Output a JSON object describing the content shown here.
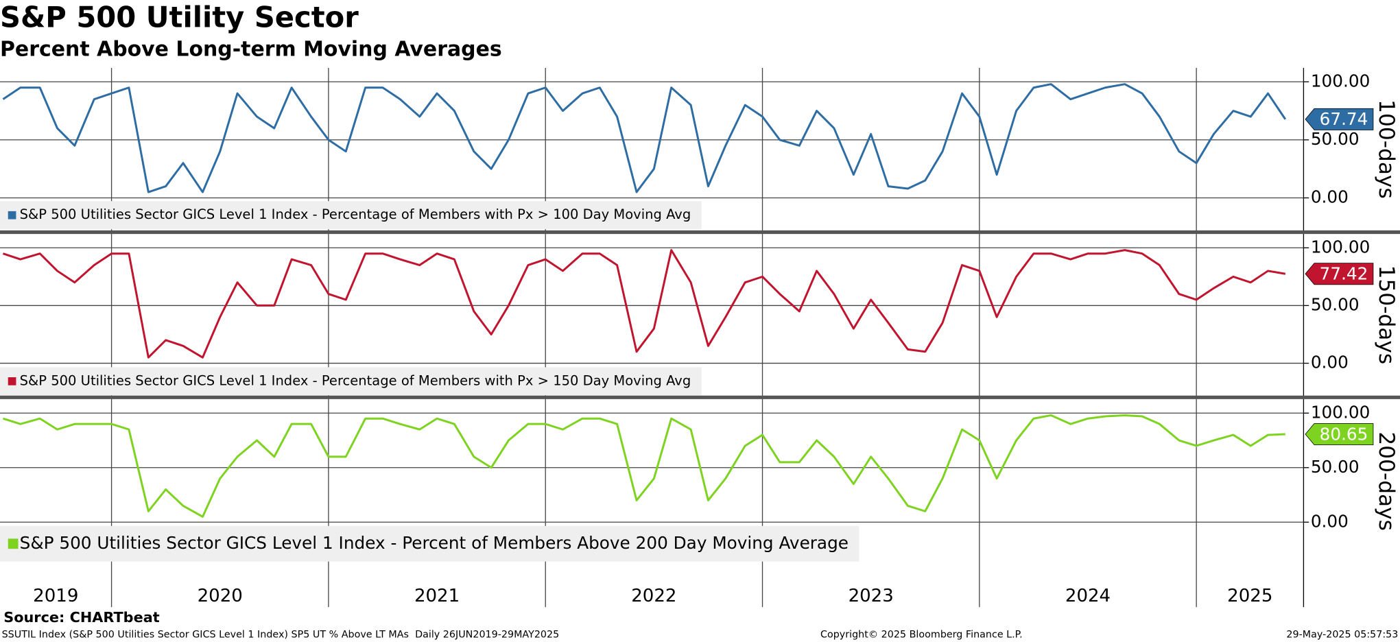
{
  "title": "S&P 500 Utility Sector",
  "subtitle": "Percent Above Long-term Moving Averages",
  "x_axis": {
    "xlim": [
      2019.486,
      2025.494
    ],
    "xticks": [
      2020,
      2021,
      2022,
      2023,
      2024,
      2025
    ],
    "year_labels": [
      2019,
      2020,
      2021,
      2022,
      2023,
      2024,
      2025
    ]
  },
  "source": "Source: CHARTbeat",
  "footer_left": "SSUTIL Index (S&P 500 Utilities Sector GICS Level 1 Index) SP5 UT % Above LT MAs  Daily 26JUN2019-29MAY2025",
  "footer_center": "Copyright© 2025 Bloomberg Finance L.P.",
  "footer_right": "29-May-2025 05:57:53",
  "chart_data": [
    {
      "type": "line",
      "axis_label": "100-days",
      "ylim": [
        -28,
        112
      ],
      "yticks": [
        {
          "value": 0,
          "label": "0.00"
        },
        {
          "value": 50,
          "label": "50.00"
        },
        {
          "value": 100,
          "label": "100.00"
        }
      ],
      "grid": true,
      "x": [
        2019.5,
        2019.58,
        2019.67,
        2019.75,
        2019.83,
        2019.92,
        2020.0,
        2020.08,
        2020.17,
        2020.25,
        2020.33,
        2020.42,
        2020.5,
        2020.58,
        2020.67,
        2020.75,
        2020.83,
        2020.92,
        2021.0,
        2021.08,
        2021.17,
        2021.25,
        2021.33,
        2021.42,
        2021.5,
        2021.58,
        2021.67,
        2021.75,
        2021.83,
        2021.92,
        2022.0,
        2022.08,
        2022.17,
        2022.25,
        2022.33,
        2022.42,
        2022.5,
        2022.58,
        2022.67,
        2022.75,
        2022.83,
        2022.92,
        2023.0,
        2023.08,
        2023.17,
        2023.25,
        2023.33,
        2023.42,
        2023.5,
        2023.58,
        2023.67,
        2023.75,
        2023.83,
        2023.92,
        2024.0,
        2024.08,
        2024.17,
        2024.25,
        2024.33,
        2024.42,
        2024.5,
        2024.58,
        2024.67,
        2024.75,
        2024.83,
        2024.92,
        2025.0,
        2025.08,
        2025.17,
        2025.25,
        2025.33,
        2025.41
      ],
      "series": [
        {
          "name": "S&P 500 Utilities Sector GICS Level 1 Index - Percentage of Members with Px > 100 Day Moving Avg",
          "color": "#2e6da4",
          "values": [
            85,
            95,
            95,
            60,
            45,
            85,
            90,
            95,
            5,
            10,
            30,
            5,
            40,
            90,
            70,
            60,
            95,
            70,
            50,
            40,
            95,
            95,
            85,
            70,
            90,
            75,
            40,
            25,
            50,
            90,
            95,
            75,
            90,
            95,
            70,
            5,
            25,
            95,
            80,
            10,
            45,
            80,
            70,
            50,
            45,
            75,
            60,
            20,
            55,
            10,
            8,
            15,
            40,
            90,
            70,
            20,
            75,
            95,
            98,
            85,
            90,
            95,
            98,
            90,
            70,
            40,
            30,
            55,
            75,
            70,
            90,
            67.74
          ]
        }
      ]
    },
    {
      "type": "line",
      "axis_label": "150-days",
      "ylim": [
        -28,
        112
      ],
      "yticks": [
        {
          "value": 0,
          "label": "0.00"
        },
        {
          "value": 50,
          "label": "50.00"
        },
        {
          "value": 100,
          "label": "100.00"
        }
      ],
      "grid": true,
      "x": [
        2019.5,
        2019.58,
        2019.67,
        2019.75,
        2019.83,
        2019.92,
        2020.0,
        2020.08,
        2020.17,
        2020.25,
        2020.33,
        2020.42,
        2020.5,
        2020.58,
        2020.67,
        2020.75,
        2020.83,
        2020.92,
        2021.0,
        2021.08,
        2021.17,
        2021.25,
        2021.33,
        2021.42,
        2021.5,
        2021.58,
        2021.67,
        2021.75,
        2021.83,
        2021.92,
        2022.0,
        2022.08,
        2022.17,
        2022.25,
        2022.33,
        2022.42,
        2022.5,
        2022.58,
        2022.67,
        2022.75,
        2022.83,
        2022.92,
        2023.0,
        2023.08,
        2023.17,
        2023.25,
        2023.33,
        2023.42,
        2023.5,
        2023.58,
        2023.67,
        2023.75,
        2023.83,
        2023.92,
        2024.0,
        2024.08,
        2024.17,
        2024.25,
        2024.33,
        2024.42,
        2024.5,
        2024.58,
        2024.67,
        2024.75,
        2024.83,
        2024.92,
        2025.0,
        2025.08,
        2025.17,
        2025.25,
        2025.33,
        2025.41
      ],
      "series": [
        {
          "name": "S&P 500 Utilities Sector GICS Level 1 Index - Percentage of Members with Px > 150 Day Moving Avg",
          "color": "#c0142f",
          "values": [
            95,
            90,
            95,
            80,
            70,
            85,
            95,
            95,
            5,
            20,
            15,
            5,
            40,
            70,
            50,
            50,
            90,
            85,
            60,
            55,
            95,
            95,
            90,
            85,
            95,
            90,
            45,
            25,
            50,
            85,
            90,
            80,
            95,
            95,
            85,
            10,
            30,
            98,
            70,
            15,
            40,
            70,
            75,
            60,
            45,
            80,
            60,
            30,
            55,
            35,
            12,
            10,
            35,
            85,
            80,
            40,
            75,
            95,
            95,
            90,
            95,
            95,
            98,
            95,
            85,
            60,
            55,
            65,
            75,
            70,
            80,
            77.42
          ]
        }
      ]
    },
    {
      "type": "line",
      "axis_label": "200-days",
      "ylim": [
        -37,
        112
      ],
      "yticks": [
        {
          "value": 0,
          "label": "0.00"
        },
        {
          "value": 50,
          "label": "50.00"
        },
        {
          "value": 100,
          "label": "100.00"
        }
      ],
      "grid": true,
      "x": [
        2019.5,
        2019.58,
        2019.67,
        2019.75,
        2019.83,
        2019.92,
        2020.0,
        2020.08,
        2020.17,
        2020.25,
        2020.33,
        2020.42,
        2020.5,
        2020.58,
        2020.67,
        2020.75,
        2020.83,
        2020.92,
        2021.0,
        2021.08,
        2021.17,
        2021.25,
        2021.33,
        2021.42,
        2021.5,
        2021.58,
        2021.67,
        2021.75,
        2021.83,
        2021.92,
        2022.0,
        2022.08,
        2022.17,
        2022.25,
        2022.33,
        2022.42,
        2022.5,
        2022.58,
        2022.67,
        2022.75,
        2022.83,
        2022.92,
        2023.0,
        2023.08,
        2023.17,
        2023.25,
        2023.33,
        2023.42,
        2023.5,
        2023.58,
        2023.67,
        2023.75,
        2023.83,
        2023.92,
        2024.0,
        2024.08,
        2024.17,
        2024.25,
        2024.33,
        2024.42,
        2024.5,
        2024.58,
        2024.67,
        2024.75,
        2024.83,
        2024.92,
        2025.0,
        2025.08,
        2025.17,
        2025.25,
        2025.33,
        2025.41
      ],
      "series": [
        {
          "name": "S&P 500 Utilities Sector GICS Level 1 Index - Percent of Members Above 200 Day Moving Average",
          "color": "#7ed321",
          "values": [
            95,
            90,
            95,
            85,
            90,
            90,
            90,
            85,
            10,
            30,
            15,
            5,
            40,
            60,
            75,
            60,
            90,
            90,
            60,
            60,
            95,
            95,
            90,
            85,
            95,
            90,
            60,
            50,
            75,
            90,
            90,
            85,
            95,
            95,
            90,
            20,
            40,
            95,
            85,
            20,
            40,
            70,
            80,
            55,
            55,
            75,
            60,
            35,
            60,
            40,
            15,
            10,
            40,
            85,
            75,
            40,
            75,
            95,
            98,
            90,
            95,
            97,
            98,
            97,
            90,
            75,
            70,
            75,
            80,
            70,
            80,
            80.65
          ]
        }
      ]
    }
  ]
}
